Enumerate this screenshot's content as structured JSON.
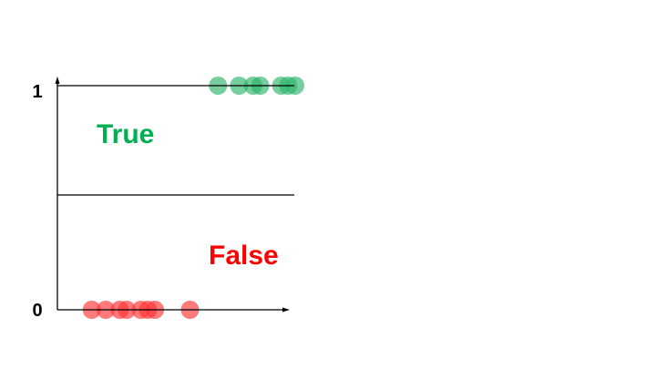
{
  "chart_data": {
    "type": "scatter",
    "title": "",
    "xlabel": "",
    "ylabel": "",
    "ylim": [
      0,
      1
    ],
    "y_tick_labels": [
      "0",
      "1"
    ],
    "threshold": 0.5,
    "annotations": {
      "true_label": "True",
      "false_label": "False"
    },
    "colors": {
      "true": "#2db36b",
      "false": "#ff3333",
      "true_label": "#00b050",
      "false_label": "#ff0000",
      "axis": "#000000"
    },
    "series": [
      {
        "class": "true",
        "y": 1,
        "x": [
          1.9,
          2.2,
          2.4,
          2.5,
          2.8,
          2.9,
          3.0
        ]
      },
      {
        "class": "false",
        "y": 0,
        "x": [
          0.1,
          0.3,
          0.5,
          0.6,
          0.8,
          0.9,
          1.0,
          1.5
        ]
      }
    ]
  }
}
